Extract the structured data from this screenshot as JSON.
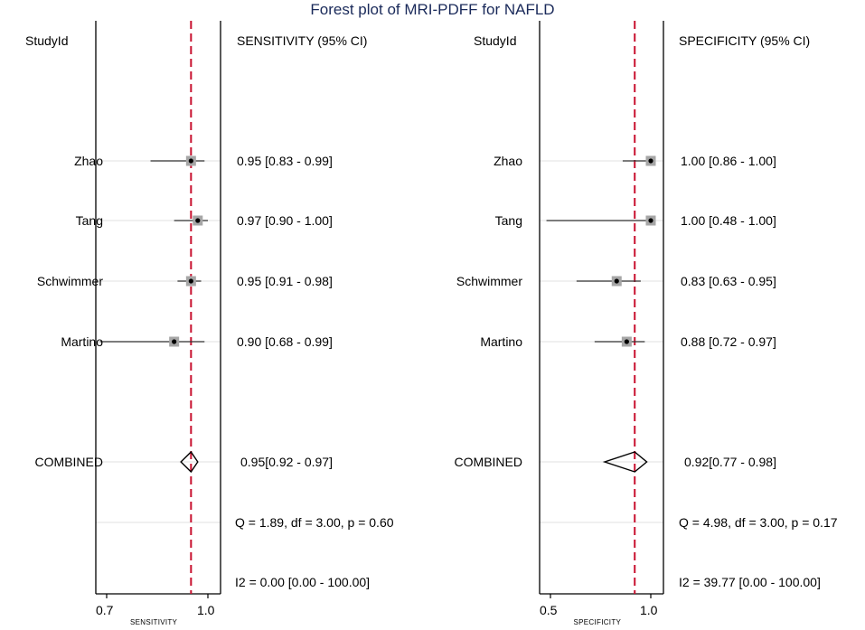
{
  "chart_data": {
    "type": "forest",
    "title": "Forest plot of MRI-PDFF for NAFLD",
    "panels": [
      {
        "id": "sensitivity",
        "label_header": "StudyId",
        "value_header": "SENSITIVITY (95% CI)",
        "xlabel": "SENSITIVITY",
        "xlim": [
          0.7,
          1.0
        ],
        "ticks": [
          {
            "value": 0.7,
            "label": "0.7"
          },
          {
            "value": 1.0,
            "label": "1.0"
          }
        ],
        "reference_line": 0.95,
        "studies": [
          {
            "name": "Zhao",
            "estimate": 0.95,
            "lower": 0.83,
            "upper": 0.99,
            "text": "0.95 [0.83 - 0.99]"
          },
          {
            "name": "Tang",
            "estimate": 0.97,
            "lower": 0.9,
            "upper": 1.0,
            "text": "0.97 [0.90 - 1.00]"
          },
          {
            "name": "Schwimmer",
            "estimate": 0.95,
            "lower": 0.91,
            "upper": 0.98,
            "text": "0.95 [0.91 - 0.98]"
          },
          {
            "name": "Martino",
            "estimate": 0.9,
            "lower": 0.68,
            "upper": 0.99,
            "text": "0.90 [0.68 - 0.99]"
          }
        ],
        "combined": {
          "name": "COMBINED",
          "estimate": 0.95,
          "lower": 0.92,
          "upper": 0.97,
          "text": "0.95[0.92 - 0.97]"
        },
        "heterogeneity": "Q =  1.89, df = 3.00, p =  0.60",
        "i2": "I2 = 0.00 [0.00 - 100.00]"
      },
      {
        "id": "specificity",
        "label_header": "StudyId",
        "value_header": "SPECIFICITY (95% CI)",
        "xlabel": "SPECIFICITY",
        "xlim": [
          0.5,
          1.0
        ],
        "ticks": [
          {
            "value": 0.5,
            "label": "0.5"
          },
          {
            "value": 1.0,
            "label": "1.0"
          }
        ],
        "reference_line": 0.92,
        "studies": [
          {
            "name": "Zhao",
            "estimate": 1.0,
            "lower": 0.86,
            "upper": 1.0,
            "text": "1.00 [0.86 - 1.00]"
          },
          {
            "name": "Tang",
            "estimate": 1.0,
            "lower": 0.48,
            "upper": 1.0,
            "text": "1.00 [0.48 - 1.00]"
          },
          {
            "name": "Schwimmer",
            "estimate": 0.83,
            "lower": 0.63,
            "upper": 0.95,
            "text": "0.83 [0.63 - 0.95]"
          },
          {
            "name": "Martino",
            "estimate": 0.88,
            "lower": 0.72,
            "upper": 0.97,
            "text": "0.88 [0.72 - 0.97]"
          }
        ],
        "combined": {
          "name": "COMBINED",
          "estimate": 0.92,
          "lower": 0.77,
          "upper": 0.98,
          "text": "0.92[0.77 - 0.98]"
        },
        "heterogeneity": "Q =  4.98, df = 3.00, p =  0.17",
        "i2": "I2 = 39.77 [0.00 - 100.00]"
      }
    ]
  },
  "colors": {
    "reference_line": "#c8102e",
    "marker_box": "#a6a6a6",
    "ci_line": "#333333",
    "row_guide": "#e6e6e6",
    "title": "#1a2a5a"
  }
}
